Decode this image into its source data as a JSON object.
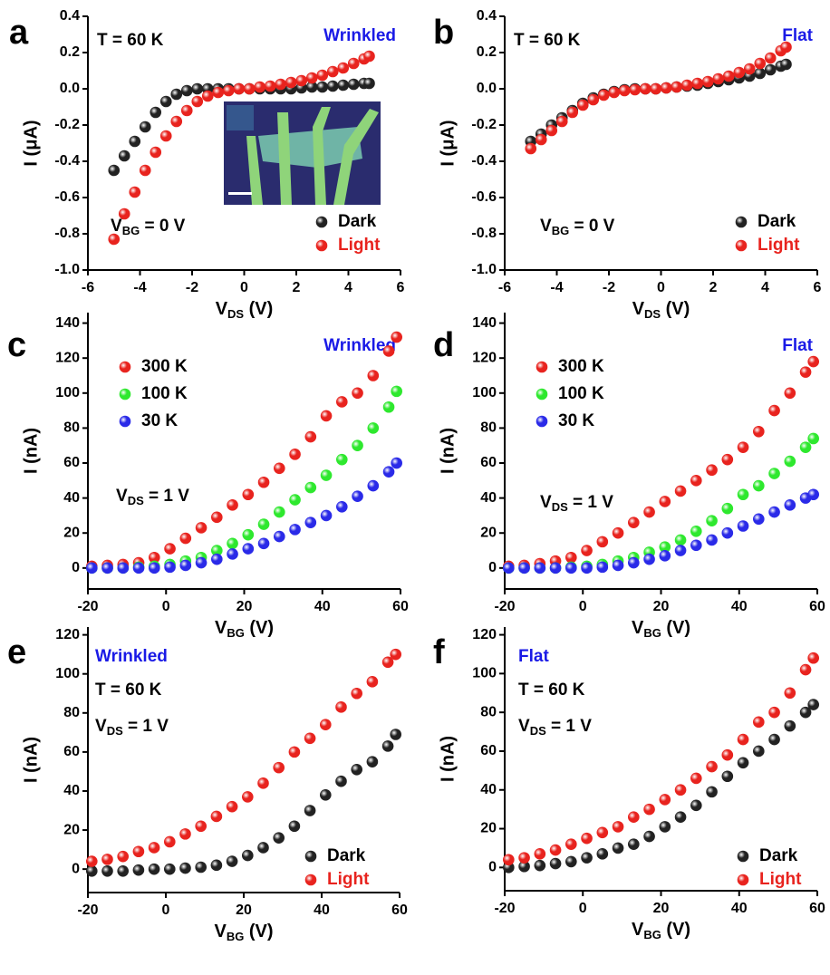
{
  "chart_data": [
    {
      "type": "scatter",
      "panel": "a",
      "ylabel": "I (μA)",
      "xlabel": [
        "V",
        "DS",
        " (V)"
      ],
      "annotations": [
        {
          "text": "T = 60 K",
          "color": "#000000"
        },
        {
          "text": "Wrinkled",
          "color": "#1a1ae6"
        },
        {
          "parts": [
            "V",
            "BG",
            " = 0 V"
          ],
          "color": "#000000"
        }
      ],
      "legend": "lower right",
      "xlim": [
        -6,
        6
      ],
      "xticks": [
        -6,
        -4,
        -2,
        0,
        2,
        4,
        6
      ],
      "ylim": [
        -1.0,
        0.4
      ],
      "yticks": [
        {
          "value": -1.0,
          "label": "-1.0"
        },
        -0.8,
        -0.6,
        -0.4,
        -0.2,
        {
          "value": 0,
          "label": "0.0"
        },
        0.2,
        0.4
      ],
      "x": [
        -5,
        -4.6,
        -4.2,
        -3.8,
        -3.4,
        -3,
        -2.6,
        -2.2,
        -1.8,
        -1.4,
        -1,
        -0.6,
        -0.2,
        0.2,
        0.6,
        1,
        1.4,
        1.8,
        2.2,
        2.6,
        3,
        3.4,
        3.8,
        4.2,
        4.6,
        4.8
      ],
      "series": [
        {
          "name": "Dark",
          "color": "#222222",
          "values": [
            -0.45,
            -0.37,
            -0.29,
            -0.21,
            -0.13,
            -0.07,
            -0.03,
            -0.01,
            0,
            0,
            0,
            0,
            0,
            0,
            0,
            0,
            0,
            0,
            0.005,
            0.01,
            0.01,
            0.015,
            0.02,
            0.025,
            0.03,
            0.03
          ]
        },
        {
          "name": "Light",
          "color": "#e8231e",
          "values": [
            -0.83,
            -0.69,
            -0.57,
            -0.45,
            -0.35,
            -0.26,
            -0.18,
            -0.12,
            -0.07,
            -0.04,
            -0.02,
            -0.01,
            0,
            0,
            0.01,
            0.015,
            0.025,
            0.035,
            0.045,
            0.06,
            0.075,
            0.095,
            0.115,
            0.14,
            0.165,
            0.18
          ]
        }
      ]
    },
    {
      "type": "scatter",
      "panel": "b",
      "ylabel": "I (μA)",
      "xlabel": [
        "V",
        "DS",
        " (V)"
      ],
      "annotations": [
        {
          "text": "T = 60 K",
          "color": "#000000"
        },
        {
          "text": "Flat",
          "color": "#1a1ae6"
        },
        {
          "parts": [
            "V",
            "BG",
            " = 0 V"
          ],
          "color": "#000000"
        }
      ],
      "legend": "lower right",
      "xlim": [
        -6,
        6
      ],
      "xticks": [
        -6,
        -4,
        -2,
        0,
        2,
        4,
        6
      ],
      "ylim": [
        -1.0,
        0.4
      ],
      "yticks": [
        {
          "value": -1.0,
          "label": "-1.0"
        },
        -0.8,
        -0.6,
        -0.4,
        -0.2,
        {
          "value": 0,
          "label": "0.0"
        },
        0.2,
        0.4
      ],
      "x": [
        -5,
        -4.6,
        -4.2,
        -3.8,
        -3.4,
        -3,
        -2.6,
        -2.2,
        -1.8,
        -1.4,
        -1,
        -0.6,
        -0.2,
        0.2,
        0.6,
        1,
        1.4,
        1.8,
        2.2,
        2.6,
        3,
        3.4,
        3.8,
        4.2,
        4.6,
        4.8
      ],
      "series": [
        {
          "name": "Dark",
          "color": "#222222",
          "values": [
            -0.29,
            -0.25,
            -0.2,
            -0.16,
            -0.12,
            -0.08,
            -0.05,
            -0.03,
            -0.015,
            -0.005,
            0,
            0,
            0,
            0.005,
            0.01,
            0.015,
            0.02,
            0.03,
            0.04,
            0.05,
            0.06,
            0.07,
            0.085,
            0.105,
            0.125,
            0.135
          ]
        },
        {
          "name": "Light",
          "color": "#e8231e",
          "values": [
            -0.33,
            -0.28,
            -0.23,
            -0.18,
            -0.13,
            -0.09,
            -0.06,
            -0.035,
            -0.02,
            -0.01,
            -0.005,
            0,
            0,
            0.005,
            0.01,
            0.02,
            0.03,
            0.04,
            0.055,
            0.07,
            0.09,
            0.11,
            0.14,
            0.17,
            0.21,
            0.23
          ]
        }
      ]
    },
    {
      "type": "scatter",
      "panel": "c",
      "ylabel": "I (nA)",
      "xlabel": [
        "V",
        "BG",
        " (V)"
      ],
      "annotations": [
        {
          "text": "Wrinkled",
          "color": "#1a1ae6"
        },
        {
          "parts": [
            "V",
            "DS",
            " = 1 V"
          ],
          "color": "#000000"
        }
      ],
      "legend": "upper left",
      "xlim": [
        -20,
        60
      ],
      "xticks": [
        -20,
        0,
        20,
        40,
        60
      ],
      "ylim": [
        -12,
        146
      ],
      "yticks": [
        0,
        20,
        40,
        60,
        80,
        100,
        120,
        140
      ],
      "x": [
        -19,
        -15,
        -11,
        -7,
        -3,
        1,
        5,
        9,
        13,
        17,
        21,
        25,
        29,
        33,
        37,
        41,
        45,
        49,
        53,
        57,
        59
      ],
      "series": [
        {
          "name": "300 K",
          "color": "#e8231e",
          "values": [
            1,
            1.5,
            2,
            3,
            6,
            11,
            17,
            23,
            29,
            36,
            42,
            49,
            57,
            65,
            75,
            87,
            95,
            100,
            110,
            124,
            132
          ]
        },
        {
          "name": "100 K",
          "color": "#2ee82e",
          "values": [
            0,
            0,
            0,
            0.5,
            1,
            2,
            4,
            6,
            10,
            14,
            19,
            25,
            32,
            39,
            46,
            53,
            62,
            70,
            80,
            92,
            101
          ]
        },
        {
          "name": "30 K",
          "color": "#2a2ae8",
          "values": [
            0,
            0,
            0,
            0,
            0,
            0.5,
            1.5,
            3,
            5,
            8,
            11,
            14,
            18,
            22,
            26,
            30,
            35,
            41,
            47,
            55,
            60
          ]
        }
      ]
    },
    {
      "type": "scatter",
      "panel": "d",
      "ylabel": "I (nA)",
      "xlabel": [
        "V",
        "BG",
        " (V)"
      ],
      "annotations": [
        {
          "text": "Flat",
          "color": "#1a1ae6"
        },
        {
          "parts": [
            "V",
            "DS",
            " = 1 V"
          ],
          "color": "#000000"
        }
      ],
      "legend": "upper left",
      "xlim": [
        -20,
        60
      ],
      "xticks": [
        -20,
        0,
        20,
        40,
        60
      ],
      "ylim": [
        -12,
        146
      ],
      "yticks": [
        0,
        20,
        40,
        60,
        80,
        100,
        120,
        140
      ],
      "x": [
        -19,
        -15,
        -11,
        -7,
        -3,
        1,
        5,
        9,
        13,
        17,
        21,
        25,
        29,
        33,
        37,
        41,
        45,
        49,
        53,
        57,
        59
      ],
      "series": [
        {
          "name": "300 K",
          "color": "#e8231e",
          "values": [
            1,
            1.5,
            2.5,
            4,
            6,
            10,
            15,
            20,
            26,
            32,
            38,
            44,
            50,
            56,
            62,
            69,
            78,
            90,
            100,
            112,
            118
          ]
        },
        {
          "name": "100 K",
          "color": "#2ee82e",
          "values": [
            0,
            0,
            0,
            0,
            0.5,
            1,
            2,
            4,
            6,
            9,
            12,
            16,
            21,
            27,
            34,
            42,
            47,
            54,
            61,
            69,
            74
          ]
        },
        {
          "name": "30 K",
          "color": "#2a2ae8",
          "values": [
            0,
            0,
            0,
            0,
            0,
            0,
            0.5,
            1.5,
            3,
            5,
            7,
            10,
            13,
            16,
            20,
            24,
            28,
            32,
            36,
            40,
            42
          ]
        }
      ]
    },
    {
      "type": "scatter",
      "panel": "e",
      "ylabel": "I (nA)",
      "xlabel": [
        "V",
        "BG",
        " (V)"
      ],
      "annotations": [
        {
          "text": "Wrinkled",
          "color": "#1a1ae6"
        },
        {
          "text": "T = 60 K",
          "color": "#000000"
        },
        {
          "parts": [
            "V",
            "DS",
            " = 1 V"
          ],
          "color": "#000000"
        }
      ],
      "legend": "lower right",
      "xlim": [
        -20,
        60
      ],
      "xticks": [
        -20,
        0,
        20,
        40,
        60
      ],
      "ylim": [
        -12,
        124
      ],
      "yticks": [
        0,
        20,
        40,
        60,
        80,
        100,
        120
      ],
      "x": [
        -19,
        -15,
        -11,
        -7,
        -3,
        1,
        5,
        9,
        13,
        17,
        21,
        25,
        29,
        33,
        37,
        41,
        45,
        49,
        53,
        57,
        59
      ],
      "series": [
        {
          "name": "Dark",
          "color": "#222222",
          "values": [
            -1,
            -1,
            -1,
            -0.5,
            0,
            0,
            0.5,
            1,
            2,
            4,
            7,
            11,
            16,
            22,
            30,
            38,
            45,
            51,
            55,
            63,
            69
          ]
        },
        {
          "name": "Light",
          "color": "#e8231e",
          "values": [
            4,
            5,
            6.5,
            9,
            11,
            14,
            18,
            22,
            27,
            32,
            37,
            44,
            52,
            60,
            67,
            74,
            83,
            90,
            96,
            106,
            110
          ]
        }
      ]
    },
    {
      "type": "scatter",
      "panel": "f",
      "ylabel": "I (nA)",
      "xlabel": [
        "V",
        "BG",
        " (V)"
      ],
      "annotations": [
        {
          "text": "Flat",
          "color": "#1a1ae6"
        },
        {
          "text": "T = 60 K",
          "color": "#000000"
        },
        {
          "parts": [
            "V",
            "DS",
            " = 1 V"
          ],
          "color": "#000000"
        }
      ],
      "legend": "lower right",
      "xlim": [
        -20,
        60
      ],
      "xticks": [
        -20,
        0,
        20,
        40,
        60
      ],
      "ylim": [
        -12,
        124
      ],
      "yticks": [
        0,
        20,
        40,
        60,
        80,
        100,
        120
      ],
      "x": [
        -19,
        -15,
        -11,
        -7,
        -3,
        1,
        5,
        9,
        13,
        17,
        21,
        25,
        29,
        33,
        37,
        41,
        45,
        49,
        53,
        57,
        59
      ],
      "series": [
        {
          "name": "Dark",
          "color": "#222222",
          "values": [
            0,
            0.5,
            1,
            2,
            3,
            5,
            7,
            10,
            12,
            16,
            21,
            26,
            32,
            39,
            47,
            54,
            60,
            66,
            73,
            80,
            84
          ]
        },
        {
          "name": "Light",
          "color": "#e8231e",
          "values": [
            4,
            5,
            7,
            9,
            12,
            15,
            18,
            21,
            26,
            30,
            35,
            40,
            46,
            52,
            58,
            66,
            75,
            80,
            90,
            102,
            108
          ]
        }
      ]
    }
  ]
}
